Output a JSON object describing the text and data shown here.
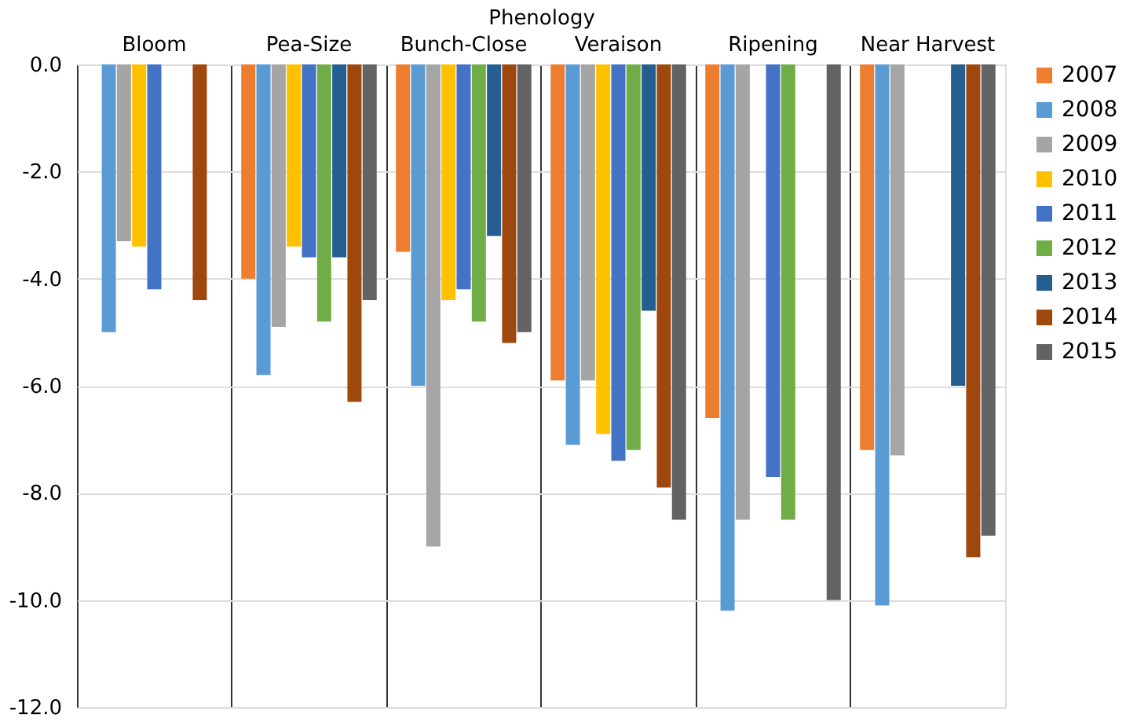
{
  "chart_data": {
    "type": "bar",
    "xlabel": "Phenology",
    "categories": [
      "Bloom",
      "Pea-Size",
      "Bunch-Close",
      "Veraison",
      "Ripening",
      "Near Harvest"
    ],
    "series": [
      {
        "name": "2007",
        "color": "#ed7d31",
        "values": [
          null,
          -4.0,
          -3.5,
          -5.9,
          -6.6,
          -7.2
        ]
      },
      {
        "name": "2008",
        "color": "#5b9bd5",
        "values": [
          -5.0,
          -5.8,
          -6.0,
          -7.1,
          -10.2,
          -10.1
        ]
      },
      {
        "name": "2009",
        "color": "#a5a5a5",
        "values": [
          -3.3,
          -4.9,
          -9.0,
          -5.9,
          -8.5,
          -7.3
        ]
      },
      {
        "name": "2010",
        "color": "#ffc000",
        "values": [
          -3.4,
          -3.4,
          -4.4,
          -6.9,
          null,
          null
        ]
      },
      {
        "name": "2011",
        "color": "#4472c4",
        "values": [
          -4.2,
          -3.6,
          -4.2,
          -7.4,
          -7.7,
          null
        ]
      },
      {
        "name": "2012",
        "color": "#70ad47",
        "values": [
          null,
          -4.8,
          -4.8,
          -7.2,
          -8.5,
          null
        ]
      },
      {
        "name": "2013",
        "color": "#255e91",
        "values": [
          null,
          -3.6,
          -3.2,
          -4.6,
          null,
          -6.0
        ]
      },
      {
        "name": "2014",
        "color": "#9e480e",
        "values": [
          -4.4,
          -6.3,
          -5.2,
          -7.9,
          null,
          -9.2
        ]
      },
      {
        "name": "2015",
        "color": "#636363",
        "values": [
          null,
          -4.4,
          -5.0,
          -8.5,
          -10.0,
          -8.8
        ]
      }
    ],
    "ylim": [
      -12.0,
      0.0
    ],
    "yticks": [
      {
        "value": -12,
        "label": "-12.0"
      },
      {
        "value": -10,
        "label": "-10.0"
      },
      {
        "value": -8,
        "label": "-8.0"
      },
      {
        "value": -6,
        "label": "-6.0"
      },
      {
        "value": -4,
        "label": "-4.0"
      },
      {
        "value": -2,
        "label": "-2.0"
      },
      {
        "value": 0,
        "label": "0.0"
      }
    ],
    "grid": true,
    "legend": "right"
  }
}
